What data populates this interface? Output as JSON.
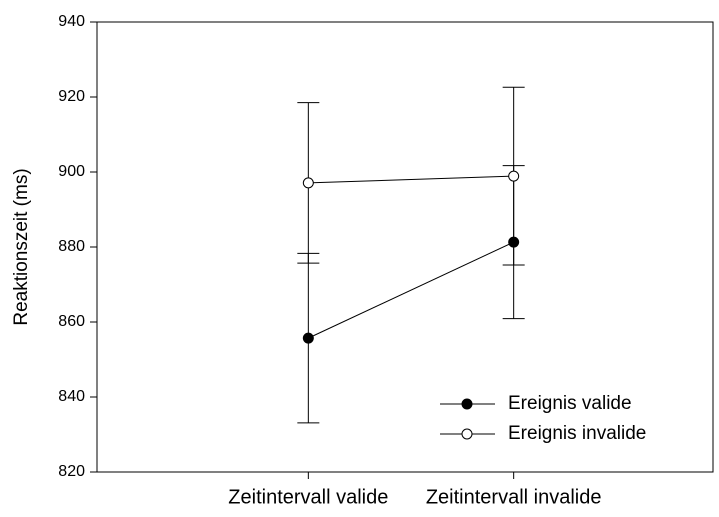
{
  "chart_data": {
    "type": "line",
    "ylabel": "Reaktionszeit (ms)",
    "categories": [
      "Zeitintervall valide",
      "Zeitintervall invalide"
    ],
    "series": [
      {
        "name": "Ereignis valide",
        "color": "#000000",
        "marker": "filled",
        "values": [
          855.7,
          881.3
        ],
        "errors": [
          22.6,
          20.4
        ]
      },
      {
        "name": "Ereignis invalide",
        "color": "#000000",
        "marker": "open",
        "values": [
          897.1,
          898.9
        ],
        "errors": [
          21.4,
          23.7
        ]
      }
    ],
    "ylim": [
      820,
      940
    ],
    "yticks": [
      820,
      840,
      860,
      880,
      900,
      920,
      940
    ],
    "grid": false,
    "legend": "lower right"
  }
}
